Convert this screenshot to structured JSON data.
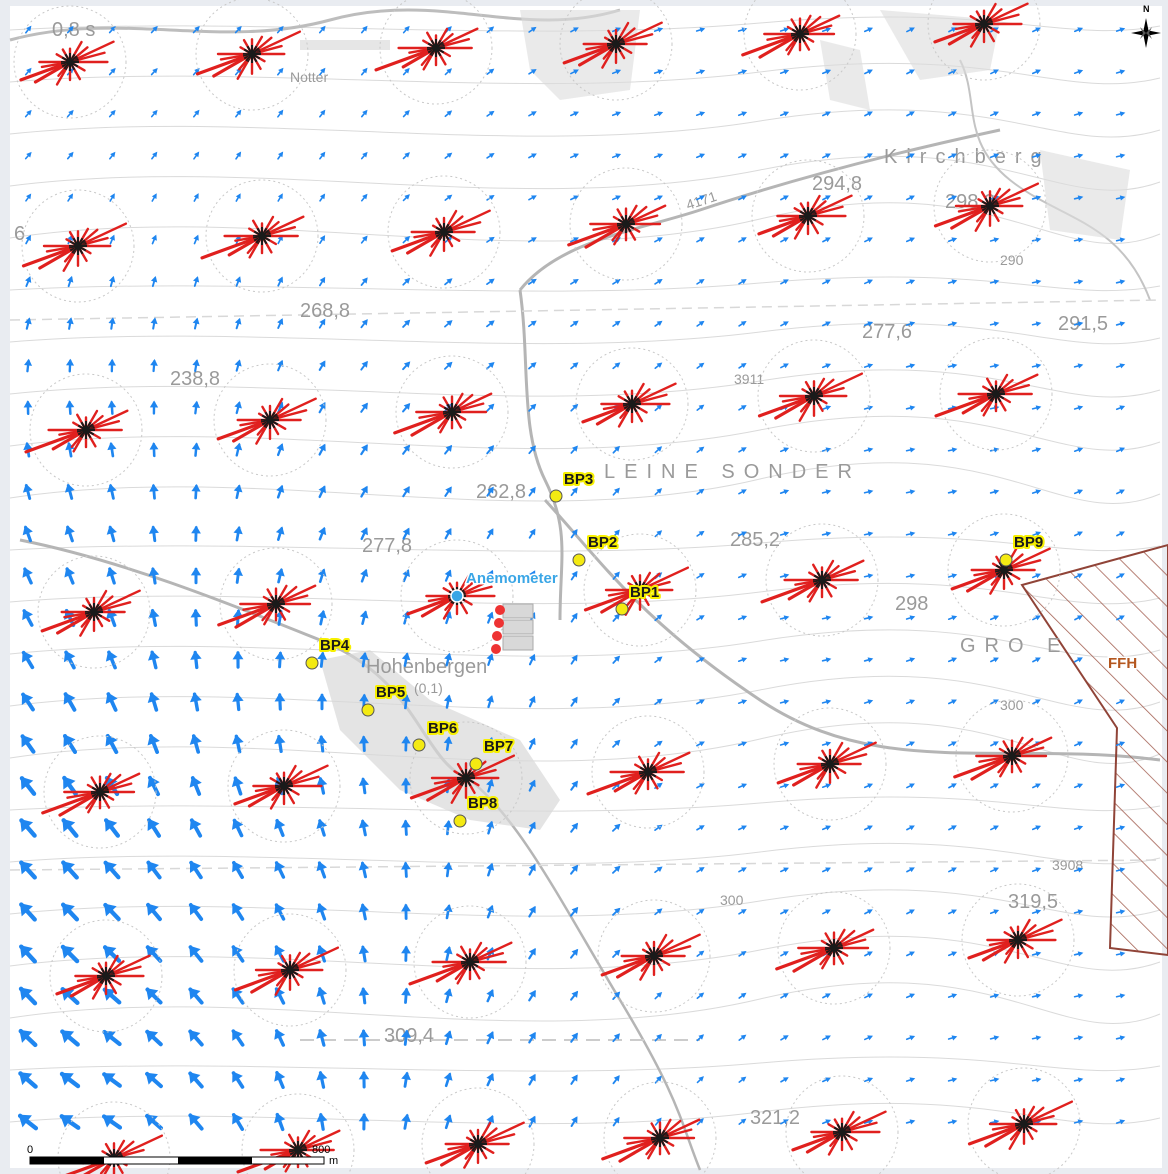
{
  "map": {
    "colors": {
      "background": "#eef0f4",
      "road": "#b8b8b8",
      "contour": "#cfcfcf",
      "wind_arrow": "#1f86f0",
      "rose_ray": "#e0201e",
      "rose_dark": "#1a1a1a",
      "point_fill": "#f4ea12",
      "ffh_outline": "#8b3a2e",
      "anemometer": "#3aa6e6"
    },
    "topo_labels": {
      "notter": "Notter",
      "v_08s": "0,8 s",
      "v_6": "6",
      "kirchberg": "Kirchberg",
      "h2948": "294,8",
      "h2982": "298,2",
      "h2868": "268,8",
      "h2388": "238,8",
      "h2776": "277,6",
      "h2915": "291,5",
      "h3911": "3911",
      "h2628": "262,8",
      "kleine_sonder": "LEINE SONDER",
      "h2778": "277,8",
      "h2852": "285,2",
      "h298": "298",
      "grosse": "GRO    E",
      "hohenbergen": "Hohenbergen",
      "zero_one": "(0,1)",
      "h3908": "3908",
      "h3195": "319,5",
      "h300a": "300",
      "h300b": "300",
      "h3094": "309,4",
      "h3212": "321,2",
      "h290": "290",
      "road4171": "4171"
    },
    "points": [
      {
        "id": "bp1",
        "label": "BP1"
      },
      {
        "id": "bp2",
        "label": "BP2"
      },
      {
        "id": "bp3",
        "label": "BP3"
      },
      {
        "id": "bp4",
        "label": "BP4"
      },
      {
        "id": "bp5",
        "label": "BP5"
      },
      {
        "id": "bp6",
        "label": "BP6"
      },
      {
        "id": "bp7",
        "label": "BP7"
      },
      {
        "id": "bp8",
        "label": "BP8"
      },
      {
        "id": "bp9",
        "label": "BP9"
      }
    ],
    "anemometer_label": "Anemometer",
    "ffh_label": "FFH",
    "north_label": "N",
    "scale": {
      "start": "0",
      "end": "800",
      "unit": "m"
    }
  }
}
